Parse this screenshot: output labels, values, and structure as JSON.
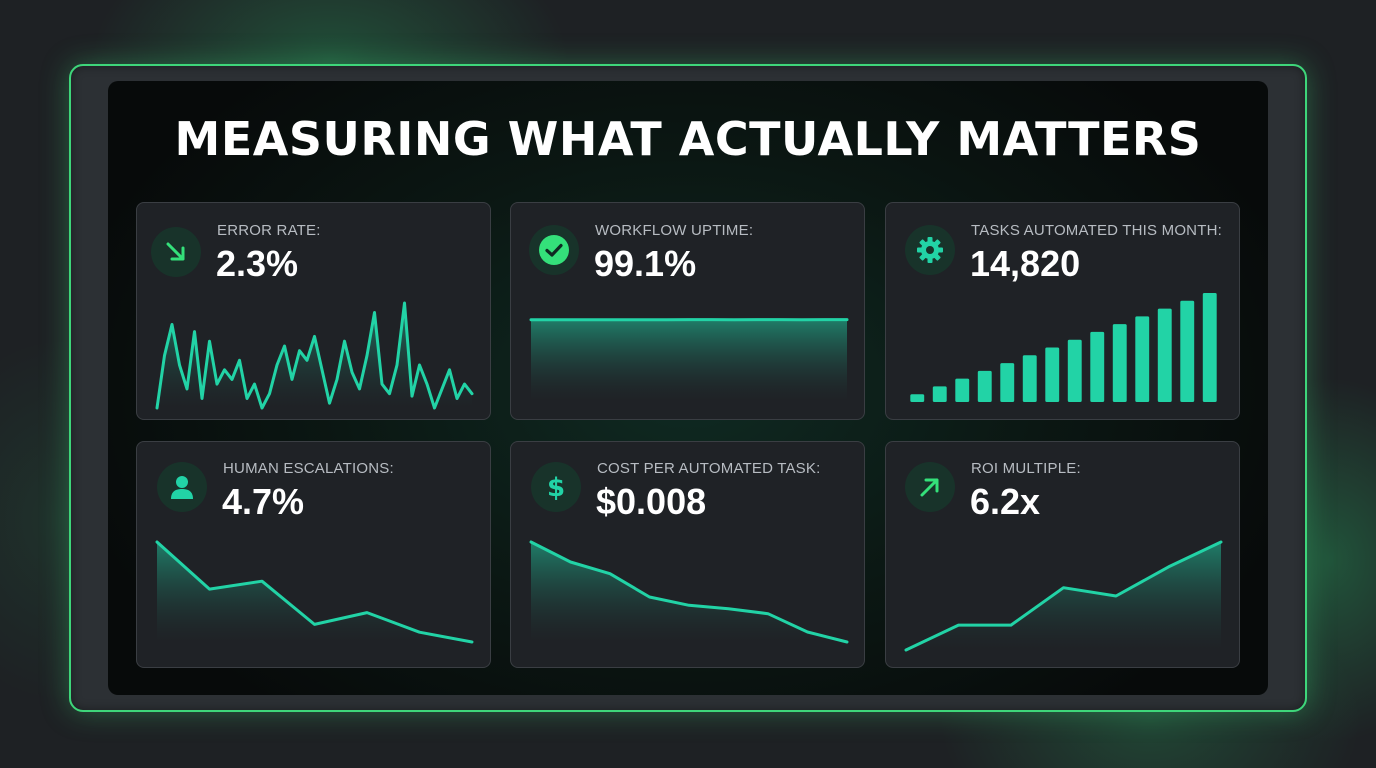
{
  "title": "MEASURING WHAT ACTUALLY MATTERS",
  "colors": {
    "accent": "#22d3a6",
    "accent_green": "#34e07a",
    "card_bg": "#1f2226",
    "frame_border": "#3ed67a"
  },
  "cards": [
    {
      "id": "error-rate",
      "label": "ERROR RATE:",
      "value": "2.3%",
      "icon": "trend-down-arrow-icon",
      "chart_data": {
        "type": "line",
        "values": [
          40,
          62,
          75,
          58,
          48,
          72,
          44,
          68,
          50,
          56,
          52,
          60,
          44,
          50,
          40,
          46,
          58,
          66,
          52,
          64,
          60,
          70,
          56,
          42,
          52,
          68,
          55,
          48,
          62,
          80,
          50,
          46,
          58,
          84,
          45,
          58,
          50,
          40,
          48,
          56,
          44,
          50,
          46
        ],
        "style": "jagged-area"
      }
    },
    {
      "id": "workflow-uptime",
      "label": "WORKFLOW UPTIME:",
      "value": "99.1%",
      "icon": "check-circle-icon",
      "chart_data": {
        "type": "area",
        "values": [
          98.9,
          98.9,
          99.0,
          99.0,
          98.9,
          99.0,
          99.0,
          99.1,
          99.1,
          99.0,
          99.1,
          99.1,
          99.0,
          99.1,
          99.1
        ],
        "style": "flat-area"
      }
    },
    {
      "id": "tasks-automated",
      "label": "TASKS AUTOMATED THIS MONTH:",
      "value": "14,820",
      "icon": "gear-icon",
      "chart_data": {
        "type": "bar",
        "values": [
          1,
          2,
          3,
          4,
          5,
          6,
          7,
          8,
          9,
          10,
          11,
          12,
          13,
          14
        ],
        "style": "increasing-bars"
      }
    },
    {
      "id": "human-escalations",
      "label": "HUMAN ESCALATIONS:",
      "value": "4.7%",
      "icon": "user-icon",
      "chart_data": {
        "type": "area",
        "values": [
          9.8,
          7.4,
          7.8,
          5.6,
          6.2,
          5.2,
          4.7
        ],
        "style": "declining-area"
      }
    },
    {
      "id": "cost-per-task",
      "label": "COST PER AUTOMATED TASK:",
      "value": "$0.008",
      "icon": "dollar-icon",
      "chart_data": {
        "type": "area",
        "values": [
          10,
          8.8,
          8.1,
          6.7,
          6.2,
          6.0,
          5.7,
          4.6,
          4.0
        ],
        "style": "declining-area"
      }
    },
    {
      "id": "roi-multiple",
      "label": "ROI MULTIPLE:",
      "value": "6.2x",
      "icon": "trend-up-arrow-icon",
      "chart_data": {
        "type": "area",
        "values": [
          1.0,
          2.2,
          2.2,
          4.0,
          3.6,
          5.0,
          6.2
        ],
        "style": "rising-area"
      }
    }
  ]
}
